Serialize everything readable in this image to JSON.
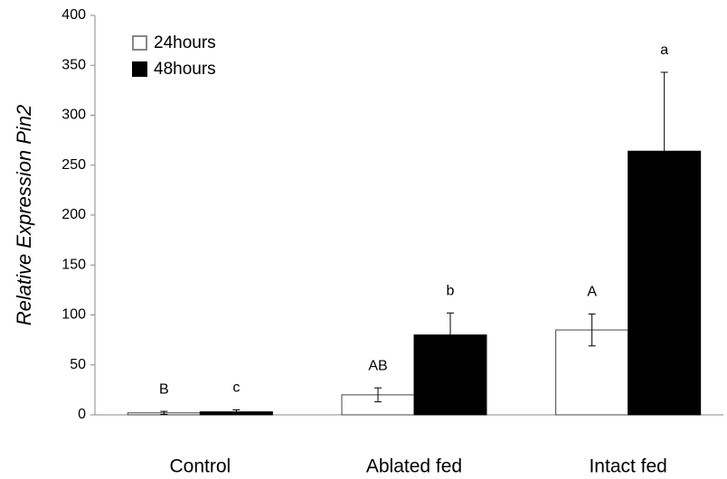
{
  "chart_data": {
    "type": "bar",
    "y_label": "Relative Expression Pin2",
    "categories": [
      "Control",
      "Ablated fed",
      "Intact fed"
    ],
    "series": [
      {
        "name": "24hours",
        "color": "#ffffff",
        "values": [
          2,
          20,
          85
        ],
        "errors": [
          1.5,
          7,
          16
        ],
        "annotations": [
          "B",
          "AB",
          "A"
        ]
      },
      {
        "name": "48hours",
        "color": "#000000",
        "values": [
          3,
          80,
          264
        ],
        "errors": [
          2,
          22,
          79
        ],
        "annotations": [
          "c",
          "b",
          "a"
        ]
      }
    ],
    "ylim": [
      0,
      400
    ],
    "yticks": [
      0,
      50,
      100,
      150,
      200,
      250,
      300,
      350,
      400
    ],
    "grid": false,
    "legend": "upper left"
  }
}
